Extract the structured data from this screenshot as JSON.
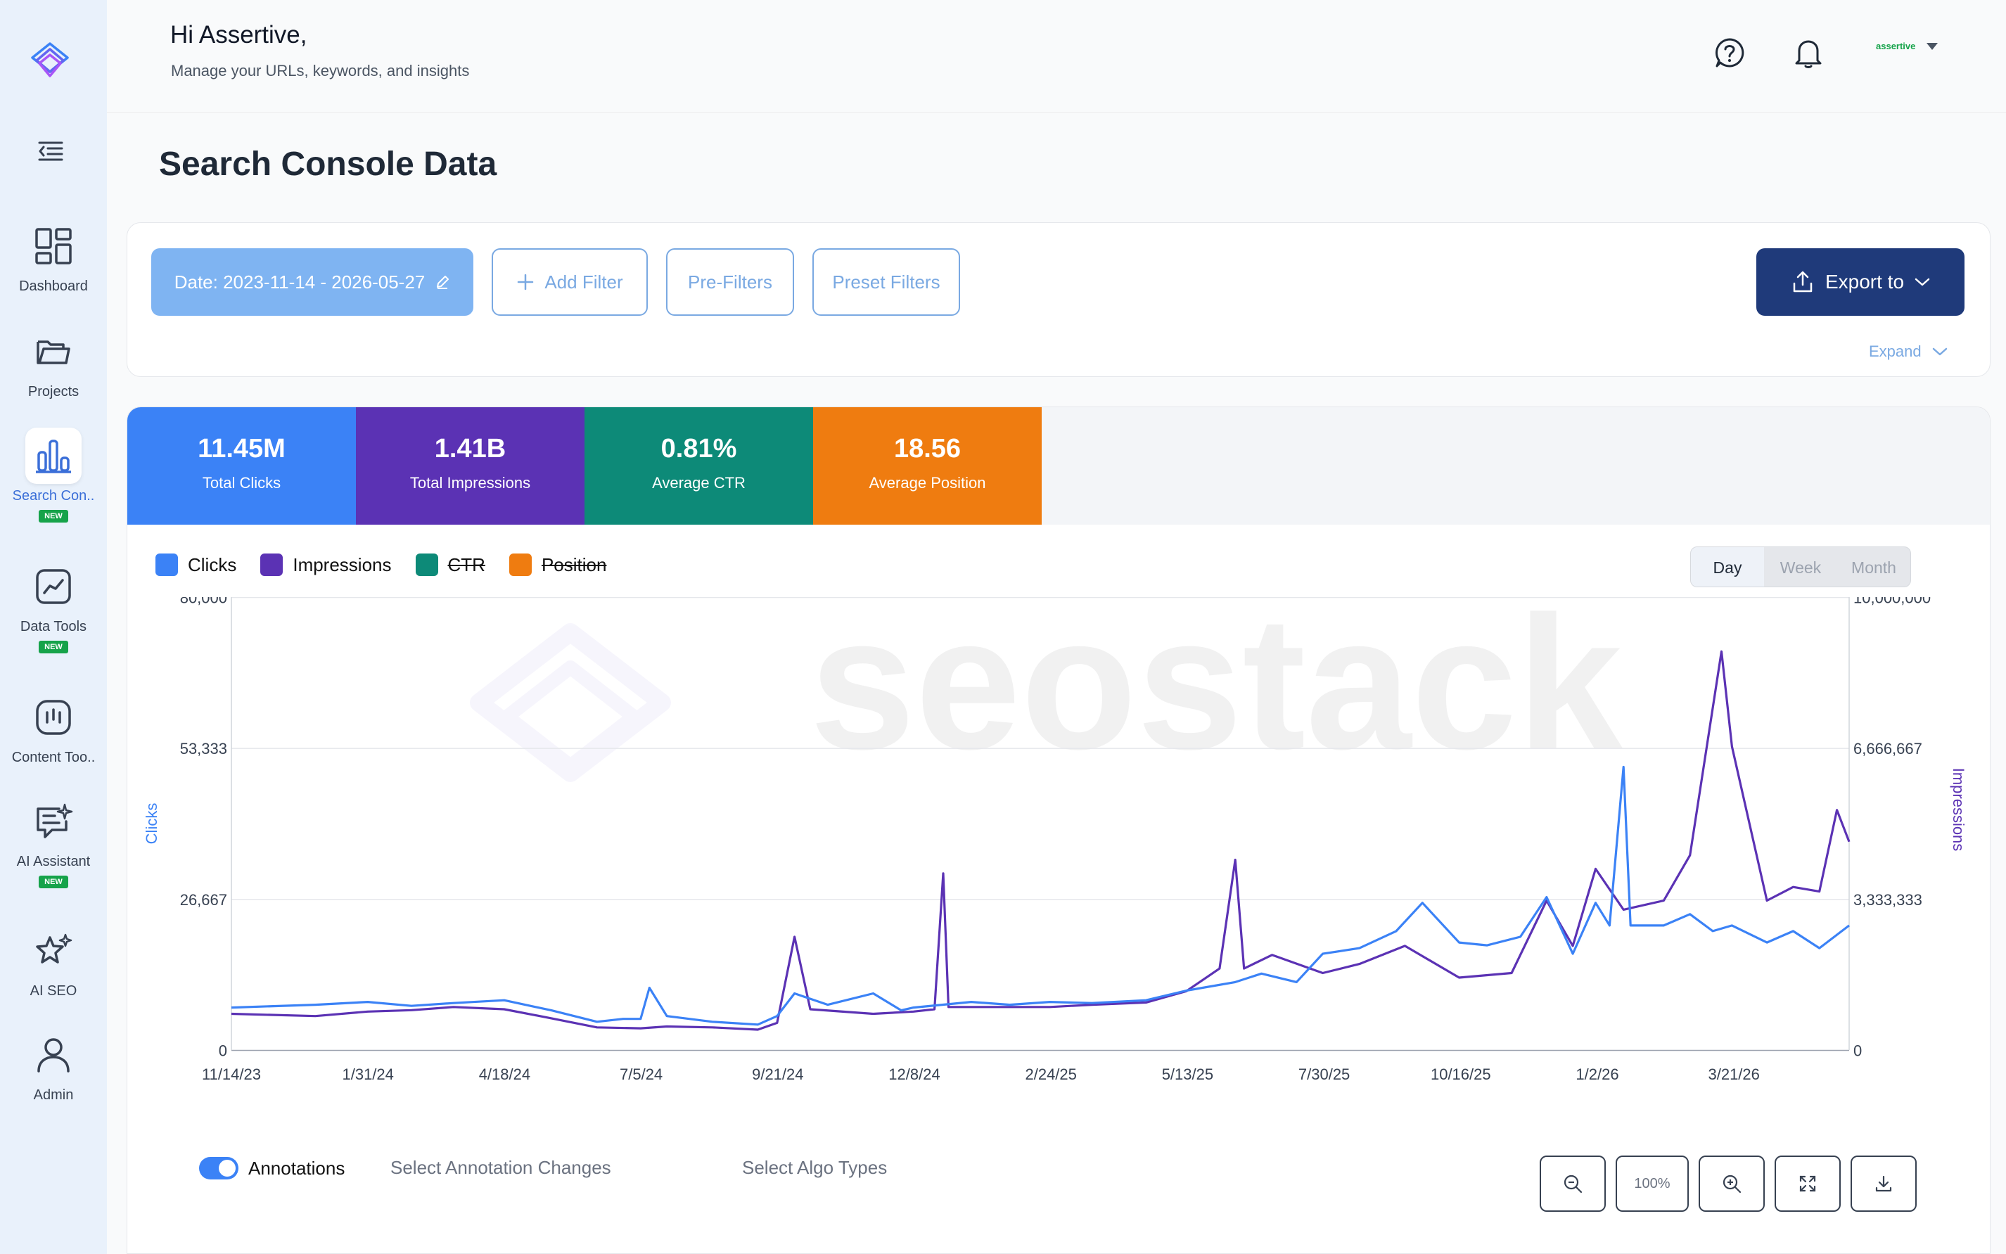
{
  "sidebar": {
    "items": [
      {
        "label": "Dashboard",
        "icon": "dashboard-icon"
      },
      {
        "label": "Projects",
        "icon": "folder-icon"
      },
      {
        "label": "Search Con..",
        "icon": "bar-chart-icon",
        "badge": "NEW",
        "active": true
      },
      {
        "label": "Data Tools",
        "icon": "trend-chart-icon",
        "badge": "NEW"
      },
      {
        "label": "Content Too..",
        "icon": "content-icon"
      },
      {
        "label": "AI Assistant",
        "icon": "ai-chat-icon",
        "badge": "NEW"
      },
      {
        "label": "AI SEO",
        "icon": "sparkle-star-icon"
      },
      {
        "label": "Admin",
        "icon": "user-icon"
      }
    ]
  },
  "header": {
    "greeting": "Hi Assertive,",
    "subtitle": "Manage your URLs, keywords, and insights",
    "user_name": "assertive"
  },
  "page_title": "Search Console Data",
  "filters": {
    "date_label": "Date: 2023-11-14 - 2026-05-27",
    "add_filter": "Add Filter",
    "pre_filters": "Pre-Filters",
    "preset_filters": "Preset Filters",
    "export": "Export to",
    "expand": "Expand"
  },
  "stats": [
    {
      "value": "11.45M",
      "label": "Total Clicks",
      "color": "#3b82f6"
    },
    {
      "value": "1.41B",
      "label": "Total Impressions",
      "color": "#5b32b4"
    },
    {
      "value": "0.81%",
      "label": "Average CTR",
      "color": "#0d8a78"
    },
    {
      "value": "18.56",
      "label": "Average Position",
      "color": "#ef7c10"
    }
  ],
  "legend": [
    {
      "label": "Clicks",
      "color": "#3b82f6",
      "enabled": true
    },
    {
      "label": "Impressions",
      "color": "#5b32b4",
      "enabled": true
    },
    {
      "label": "CTR",
      "color": "#0d8a78",
      "enabled": false
    },
    {
      "label": "Position",
      "color": "#ef7c10",
      "enabled": false
    }
  ],
  "period": {
    "options": [
      "Day",
      "Week",
      "Month"
    ],
    "selected": "Day"
  },
  "watermark": "seostack",
  "annotations": {
    "toggle_label": "Annotations",
    "enabled": true,
    "select_changes": "Select Annotation Changes",
    "select_algo": "Select Algo Types"
  },
  "zoom": {
    "level": "100%"
  },
  "chart_data": {
    "type": "line",
    "title": "",
    "xlabel": "",
    "ylabel": "Clicks",
    "y2label": "Impressions",
    "ylim": [
      0,
      80000
    ],
    "y2lim": [
      0,
      10000000
    ],
    "y_ticks": [
      "0",
      "26,667",
      "53,333",
      "80,000"
    ],
    "y2_ticks": [
      "0",
      "3,333,333",
      "6,666,667",
      "10,000,000"
    ],
    "x_ticks": [
      "11/14/23",
      "1/31/24",
      "4/18/24",
      "7/5/24",
      "9/21/24",
      "12/8/24",
      "2/24/25",
      "5/13/25",
      "7/30/25",
      "10/16/25",
      "1/2/26",
      "3/21/26"
    ],
    "x_range": [
      "2023-11-14",
      "2026-05-27"
    ],
    "grid": true,
    "series": [
      {
        "name": "Clicks",
        "axis": "left",
        "color": "#3b82f6",
        "points": [
          [
            "2023-11-14",
            7500
          ],
          [
            "2024-01-01",
            8000
          ],
          [
            "2024-01-31",
            8500
          ],
          [
            "2024-02-25",
            7800
          ],
          [
            "2024-03-20",
            8300
          ],
          [
            "2024-04-18",
            8800
          ],
          [
            "2024-05-15",
            7000
          ],
          [
            "2024-06-10",
            5000
          ],
          [
            "2024-06-25",
            5500
          ],
          [
            "2024-07-05",
            5500
          ],
          [
            "2024-07-10",
            11000
          ],
          [
            "2024-07-20",
            6000
          ],
          [
            "2024-08-15",
            5000
          ],
          [
            "2024-09-10",
            4500
          ],
          [
            "2024-09-21",
            6000
          ],
          [
            "2024-10-01",
            10000
          ],
          [
            "2024-10-20",
            8000
          ],
          [
            "2024-11-15",
            10000
          ],
          [
            "2024-12-01",
            7000
          ],
          [
            "2024-12-08",
            7500
          ],
          [
            "2025-01-10",
            8500
          ],
          [
            "2025-02-01",
            8000
          ],
          [
            "2025-02-24",
            8500
          ],
          [
            "2025-03-20",
            8300
          ],
          [
            "2025-04-20",
            8800
          ],
          [
            "2025-05-13",
            10500
          ],
          [
            "2025-06-10",
            12000
          ],
          [
            "2025-06-25",
            13500
          ],
          [
            "2025-07-15",
            12000
          ],
          [
            "2025-07-30",
            17000
          ],
          [
            "2025-08-20",
            18000
          ],
          [
            "2025-09-10",
            21000
          ],
          [
            "2025-09-25",
            26000
          ],
          [
            "2025-10-16",
            19000
          ],
          [
            "2025-11-01",
            18500
          ],
          [
            "2025-11-20",
            20000
          ],
          [
            "2025-12-05",
            27000
          ],
          [
            "2025-12-20",
            17000
          ],
          [
            "2026-01-02",
            26000
          ],
          [
            "2026-01-10",
            22000
          ],
          [
            "2026-01-18",
            50000
          ],
          [
            "2026-01-22",
            22000
          ],
          [
            "2026-02-10",
            22000
          ],
          [
            "2026-02-25",
            24000
          ],
          [
            "2026-03-10",
            21000
          ],
          [
            "2026-03-21",
            22000
          ],
          [
            "2026-04-10",
            19000
          ],
          [
            "2026-04-25",
            21000
          ],
          [
            "2026-05-10",
            18000
          ],
          [
            "2026-05-27",
            22000
          ]
        ]
      },
      {
        "name": "Impressions",
        "axis": "right",
        "color": "#5b32b4",
        "points": [
          [
            "2023-11-14",
            800000
          ],
          [
            "2024-01-01",
            750000
          ],
          [
            "2024-01-31",
            850000
          ],
          [
            "2024-02-25",
            880000
          ],
          [
            "2024-03-20",
            950000
          ],
          [
            "2024-04-18",
            900000
          ],
          [
            "2024-05-15",
            700000
          ],
          [
            "2024-06-10",
            500000
          ],
          [
            "2024-07-05",
            480000
          ],
          [
            "2024-07-20",
            520000
          ],
          [
            "2024-08-15",
            500000
          ],
          [
            "2024-09-10",
            450000
          ],
          [
            "2024-09-21",
            600000
          ],
          [
            "2024-10-01",
            2500000
          ],
          [
            "2024-10-10",
            900000
          ],
          [
            "2024-11-15",
            800000
          ],
          [
            "2024-12-08",
            850000
          ],
          [
            "2024-12-20",
            900000
          ],
          [
            "2024-12-25",
            3900000
          ],
          [
            "2024-12-28",
            950000
          ],
          [
            "2025-02-01",
            950000
          ],
          [
            "2025-02-24",
            950000
          ],
          [
            "2025-03-20",
            1000000
          ],
          [
            "2025-04-20",
            1050000
          ],
          [
            "2025-05-13",
            1300000
          ],
          [
            "2025-06-01",
            1800000
          ],
          [
            "2025-06-10",
            4200000
          ],
          [
            "2025-06-15",
            1800000
          ],
          [
            "2025-07-01",
            2100000
          ],
          [
            "2025-07-30",
            1700000
          ],
          [
            "2025-08-20",
            1900000
          ],
          [
            "2025-09-15",
            2300000
          ],
          [
            "2025-10-16",
            1600000
          ],
          [
            "2025-11-15",
            1700000
          ],
          [
            "2025-12-05",
            3300000
          ],
          [
            "2025-12-20",
            2300000
          ],
          [
            "2026-01-02",
            4000000
          ],
          [
            "2026-01-18",
            3100000
          ],
          [
            "2026-02-10",
            3300000
          ],
          [
            "2026-02-25",
            4300000
          ],
          [
            "2026-03-15",
            8800000
          ],
          [
            "2026-03-21",
            6700000
          ],
          [
            "2026-04-10",
            3300000
          ],
          [
            "2026-04-25",
            3600000
          ],
          [
            "2026-05-10",
            3500000
          ],
          [
            "2026-05-20",
            5300000
          ],
          [
            "2026-05-27",
            4600000
          ]
        ]
      }
    ]
  }
}
